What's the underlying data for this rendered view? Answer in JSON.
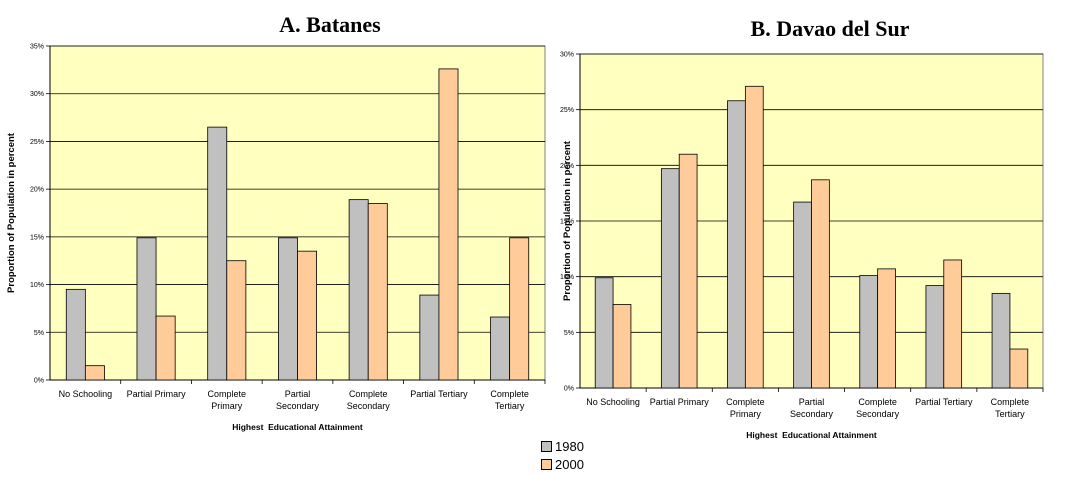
{
  "titles": {
    "a": "A. Batanes",
    "b": "B. Davao del Sur"
  },
  "colors": {
    "plot_bg": "#ffffc0",
    "s1980": "#c0c0c0",
    "s2000": "#ffcc99"
  },
  "chart_data": [
    {
      "type": "bar",
      "title": "A. Batanes",
      "xlabel": "Highest  Educational Attainment",
      "ylabel": "Proportion of Population in percent",
      "ylim": [
        0,
        35
      ],
      "yticks": [
        "0%",
        "5%",
        "10%",
        "15%",
        "20%",
        "25%",
        "30%",
        "35%"
      ],
      "categories": [
        [
          "No Schooling"
        ],
        [
          "Partial Primary"
        ],
        [
          "Complete",
          "Primary"
        ],
        [
          "Partial",
          "Secondary"
        ],
        [
          "Complete",
          "Secondary"
        ],
        [
          "Partial Tertiary"
        ],
        [
          "Complete",
          "Tertiary"
        ]
      ],
      "series": [
        {
          "name": "1980",
          "values": [
            9.5,
            14.9,
            26.5,
            14.9,
            18.9,
            8.9,
            6.6
          ]
        },
        {
          "name": "2000",
          "values": [
            1.5,
            6.7,
            12.5,
            13.5,
            18.5,
            32.6,
            14.9
          ]
        }
      ],
      "grid": true
    },
    {
      "type": "bar",
      "title": "B. Davao del Sur",
      "xlabel": "Highest  Educational Attainment",
      "ylabel": "Proportion of Population in percent",
      "ylim": [
        0,
        30
      ],
      "yticks": [
        "0%",
        "5%",
        "10%",
        "15%",
        "20%",
        "25%",
        "30%"
      ],
      "categories": [
        [
          "No Schooling"
        ],
        [
          "Partial Primary"
        ],
        [
          "Complete",
          "Primary"
        ],
        [
          "Partial",
          "Secondary"
        ],
        [
          "Complete",
          "Secondary"
        ],
        [
          "Partial Tertiary"
        ],
        [
          "Complete",
          "Tertiary"
        ]
      ],
      "series": [
        {
          "name": "1980",
          "values": [
            9.9,
            19.7,
            25.8,
            16.7,
            10.1,
            9.2,
            8.5
          ]
        },
        {
          "name": "2000",
          "values": [
            7.5,
            21.0,
            27.1,
            18.7,
            10.7,
            11.5,
            3.5
          ]
        }
      ],
      "grid": true
    }
  ],
  "legend": {
    "placement": "bottom-center",
    "items": [
      "1980",
      "2000"
    ]
  }
}
